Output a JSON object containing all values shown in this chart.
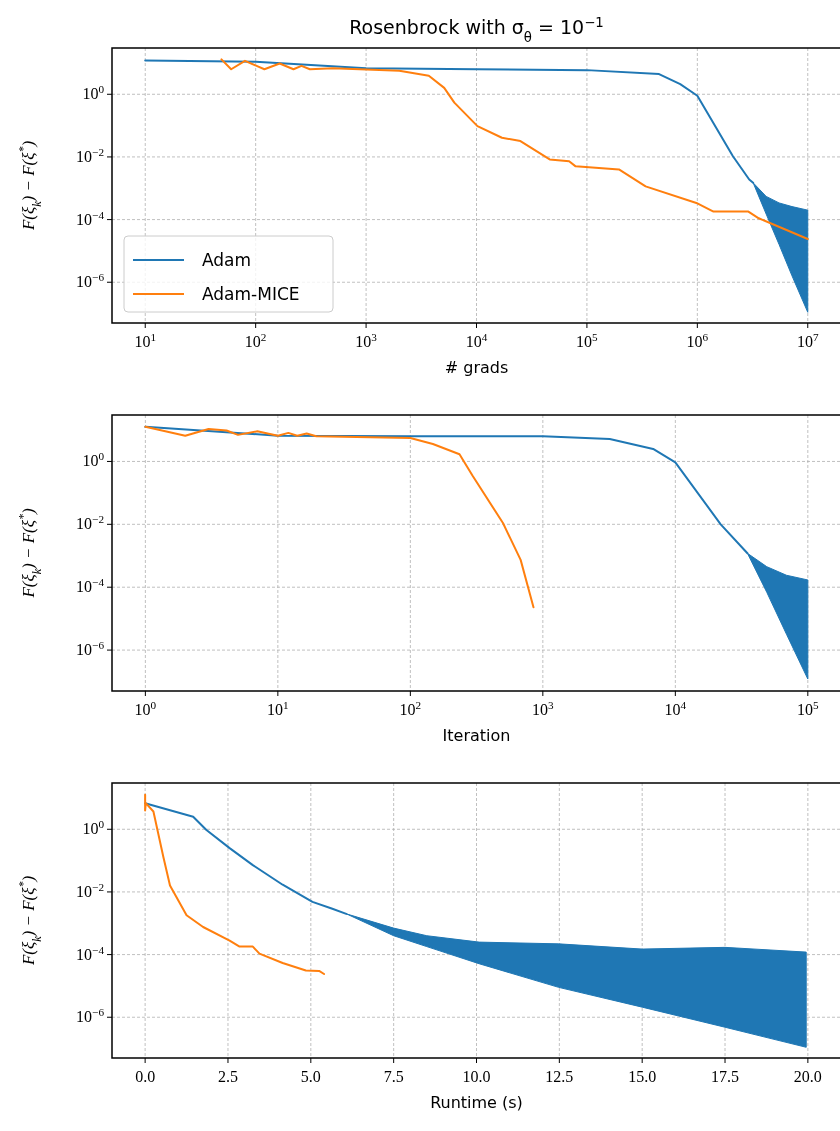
{
  "chart_data": [
    {
      "type": "line",
      "title": "Rosenbrock with σ$_{θ}$ = 10$^{−1}$",
      "xlabel": "# grads",
      "ylabel": "F(ξ$_{k}$) − F(ξ$^{*}$)",
      "log": "xy",
      "grid": true,
      "legend": "bottom left",
      "xlim": [
        5,
        20000000.0
      ],
      "ylim": [
        5e-08,
        30
      ],
      "xticks": [
        {
          "value": 10,
          "label": "10$^{1}$"
        },
        {
          "value": 100,
          "label": "10$^{2}$"
        },
        {
          "value": 1000,
          "label": "10$^{3}$"
        },
        {
          "value": 10000,
          "label": "10$^{4}$"
        },
        {
          "value": 100000,
          "label": "10$^{5}$"
        },
        {
          "value": 1000000,
          "label": "10$^{6}$"
        },
        {
          "value": 10000000,
          "label": "10$^{7}$"
        }
      ],
      "yticks": [
        {
          "value": 1,
          "label": "10$^{0}$"
        },
        {
          "value": 0.01,
          "label": "10$^{−2}$"
        },
        {
          "value": 0.0001,
          "label": "10$^{−4}$"
        },
        {
          "value": 1e-06,
          "label": "10$^{−6}$"
        }
      ],
      "series": [
        {
          "name": "Adam",
          "color": "#1f77b4",
          "x": [
            10,
            100,
            1000,
            10000,
            100000,
            450000,
            700000,
            1000000,
            2100000,
            2950000,
            3200000,
            4200000,
            5500000,
            7200000,
            10000000
          ],
          "values": [
            12,
            11,
            6.8,
            6.3,
            5.9,
            4.4,
            2.1,
            0.9,
            0.0105,
            0.0019,
            0.0015,
            null,
            null,
            null,
            null
          ],
          "lower": [
            null,
            null,
            null,
            null,
            null,
            null,
            null,
            null,
            null,
            null,
            0.0015,
            0.00015,
            1.6e-05,
            1.6e-06,
            1.1e-07
          ],
          "upper": [
            null,
            null,
            null,
            null,
            null,
            null,
            null,
            null,
            null,
            null,
            0.0015,
            0.00055,
            0.00034,
            0.00026,
            0.0002
          ]
        },
        {
          "name": "Adam-MICE",
          "color": "#ff7f0e",
          "x": [
            49,
            60,
            80,
            120,
            165,
            220,
            260,
            310,
            500,
            1000,
            2000,
            3700,
            5100,
            6300,
            10200,
            17000,
            25000,
            46000,
            69000,
            79000,
            195000,
            340000,
            980000,
            1400000,
            2900000,
            3600000,
            10000000
          ],
          "values": [
            13,
            6.3,
            11.7,
            6.3,
            9.6,
            6.3,
            8.1,
            6.3,
            6.8,
            6.2,
            5.6,
            3.9,
            1.6,
            0.54,
            0.096,
            0.041,
            0.032,
            0.0083,
            0.0073,
            0.005,
            0.004,
            0.00115,
            0.00034,
            0.00018,
            0.00018,
            0.00011,
            2.4e-05
          ]
        }
      ]
    },
    {
      "type": "line",
      "xlabel": "Iteration",
      "ylabel": "F(ξ$_{k}$) − F(ξ$^{*}$)",
      "log": "xy",
      "grid": true,
      "xlim": [
        0.56,
        178000
      ],
      "ylim": [
        5e-08,
        30
      ],
      "xticks": [
        {
          "value": 1,
          "label": "10$^{0}$"
        },
        {
          "value": 10,
          "label": "10$^{1}$"
        },
        {
          "value": 100,
          "label": "10$^{2}$"
        },
        {
          "value": 1000,
          "label": "10$^{3}$"
        },
        {
          "value": 10000,
          "label": "10$^{4}$"
        },
        {
          "value": 100000,
          "label": "10$^{5}$"
        }
      ],
      "yticks": [
        {
          "value": 1,
          "label": "10$^{0}$"
        },
        {
          "value": 0.01,
          "label": "10$^{−2}$"
        },
        {
          "value": 0.0001,
          "label": "10$^{−4}$"
        },
        {
          "value": 1e-06,
          "label": "10$^{−6}$"
        }
      ],
      "series": [
        {
          "color": "#1f77b4",
          "x": [
            1,
            10,
            100,
            1000,
            3200,
            6800,
            10000,
            22000,
            35000,
            49000,
            69000,
            100000
          ],
          "values": [
            12.6,
            6.6,
            6.3,
            6.3,
            5.2,
            2.5,
            0.93,
            0.01,
            0.0012,
            null,
            null,
            null
          ],
          "lower": [
            null,
            null,
            null,
            null,
            null,
            null,
            null,
            null,
            0.0012,
            6.9e-05,
            3.2e-06,
            1.2e-07
          ],
          "upper": [
            null,
            null,
            null,
            null,
            null,
            null,
            null,
            null,
            0.0012,
            0.00045,
            0.00024,
            0.00017
          ]
        },
        {
          "color": "#ff7f0e",
          "x": [
            1,
            2,
            3,
            4.1,
            5,
            7,
            10,
            12,
            14,
            16.5,
            19.5,
            100,
            148,
            235,
            295,
            500,
            680,
            850
          ],
          "values": [
            12.6,
            6.6,
            10.8,
            9.6,
            7,
            9.1,
            6.6,
            8.1,
            6.6,
            7.7,
            6.3,
            5.6,
            3.6,
            1.7,
            0.35,
            0.011,
            0.00074,
            2.3e-05
          ]
        }
      ]
    },
    {
      "type": "line",
      "xlabel": "Runtime (s)",
      "ylabel": "F(ξ$_{k}$) − F(ξ$^{*}$)",
      "log": "y",
      "grid": true,
      "xlim": [
        -1,
        21
      ],
      "ylim": [
        5e-08,
        30
      ],
      "xticks": [
        {
          "value": 0,
          "label": "0.0"
        },
        2.5,
        {
          "value": 5,
          "label": "5.0"
        },
        7.5,
        {
          "value": 10,
          "label": "10.0"
        },
        12.5,
        {
          "value": 15,
          "label": "15.0"
        },
        17.5,
        {
          "value": 20,
          "label": "20.0"
        }
      ],
      "yticks": [
        {
          "value": 1,
          "label": "10$^{0}$"
        },
        {
          "value": 0.01,
          "label": "10$^{−2}$"
        },
        {
          "value": 0.0001,
          "label": "10$^{−4}$"
        },
        {
          "value": 1e-06,
          "label": "10$^{−6}$"
        }
      ],
      "series": [
        {
          "color": "#1f77b4",
          "x": [
            0,
            1.45,
            1.85,
            2.55,
            3.25,
            4.15,
            5.05,
            5.65,
            6.07,
            7.5,
            8.5,
            10.08,
            12.48,
            15,
            17.5,
            19.95
          ],
          "values": [
            6.8,
            2.5,
            0.95,
            0.25,
            0.072,
            0.017,
            0.0048,
            0.0029,
            0.002,
            null,
            null,
            null,
            null,
            null,
            null,
            null
          ],
          "lower": [
            null,
            null,
            null,
            null,
            null,
            null,
            null,
            null,
            0.002,
            0.0004,
            0.00018,
            5.1e-05,
            9e-06,
            2.1e-06,
            4.8e-07,
            1.1e-07
          ],
          "upper": [
            null,
            null,
            null,
            null,
            null,
            null,
            null,
            null,
            0.002,
            0.0007,
            0.0004,
            0.00025,
            0.00022,
            0.00015,
            0.00017,
            0.00012
          ]
        },
        {
          "color": "#ff7f0e",
          "x": [
            0,
            0,
            0.02,
            0.25,
            0.55,
            0.75,
            1.25,
            1.75,
            2.55,
            2.85,
            3.25,
            3.45,
            4.15,
            4.85,
            5.25,
            5.4
          ],
          "values": [
            12.6,
            4,
            6.8,
            3.7,
            0.13,
            0.016,
            0.0018,
            0.00076,
            0.00028,
            0.00018,
            0.00018,
            0.000107,
            5.4e-05,
            3.1e-05,
            3e-05,
            2.4e-05
          ]
        }
      ]
    }
  ]
}
